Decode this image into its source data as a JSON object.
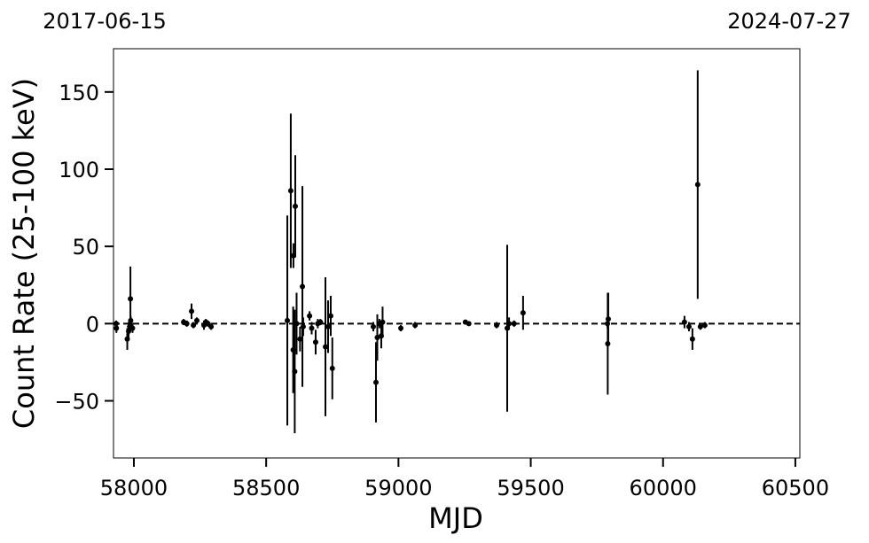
{
  "chart_data": {
    "type": "errorbar",
    "top_left_label": "2017-06-15",
    "top_right_label": "2024-07-27",
    "x_label": "MJD",
    "y_label": "Count Rate (25-100 keV)",
    "xlim": [
      57923,
      60517
    ],
    "ylim": [
      -87,
      178
    ],
    "xticks": [
      58000,
      58500,
      59000,
      59500,
      60000,
      60500
    ],
    "yticks": [
      {
        "value": -50,
        "label": "−50"
      },
      0,
      50,
      100,
      150
    ],
    "hline": 0,
    "series": [
      {
        "color": "#000000",
        "x": [
          57933,
          57934,
          57975,
          57980,
          57984,
          57986,
          57988,
          57987,
          57995,
          58188,
          58200,
          58218,
          58225,
          58238,
          58265,
          58272,
          58280,
          58292,
          58580,
          58593,
          58603,
          58610,
          58602,
          58608,
          58615,
          58637,
          58628,
          58640,
          58664,
          58672,
          58687,
          58695,
          58705,
          58724,
          58734,
          58744,
          58750,
          58905,
          58915,
          58920,
          58928,
          58935,
          58940,
          59009,
          59063,
          59253,
          59266,
          59371,
          59411,
          59418,
          59437,
          59471,
          59790,
          59793,
          59791,
          60081,
          60098,
          60111,
          60131,
          60141,
          60158
        ],
        "values": [
          0,
          -3,
          -10,
          -5,
          -2,
          0,
          2,
          16,
          -3,
          1,
          0,
          8,
          -1,
          2,
          -1,
          1,
          0,
          -2,
          2,
          86,
          44,
          76,
          -17,
          -31,
          0,
          24,
          -10,
          -2,
          5,
          -3,
          -12,
          0,
          1,
          -15,
          -2,
          5,
          -29,
          -2,
          -38,
          -9,
          0,
          -8,
          1,
          -3,
          -1,
          1,
          0,
          -1,
          -3,
          0,
          0,
          7,
          0,
          3,
          -13,
          1,
          -2,
          -10,
          90,
          -2,
          -1
        ],
        "errors": [
          2,
          3,
          7,
          5,
          4,
          3,
          3,
          21,
          3,
          2,
          2,
          5,
          2,
          2,
          3,
          2,
          2,
          2,
          68,
          50,
          8,
          33,
          28,
          40,
          20,
          65,
          8,
          6,
          3,
          4,
          8,
          3,
          2,
          45,
          17,
          13,
          20,
          3,
          26,
          15,
          3,
          8,
          10,
          2,
          2,
          1,
          1,
          2,
          54,
          4,
          2,
          11,
          3,
          17,
          33,
          4,
          3,
          7,
          74,
          2,
          2
        ]
      }
    ]
  }
}
